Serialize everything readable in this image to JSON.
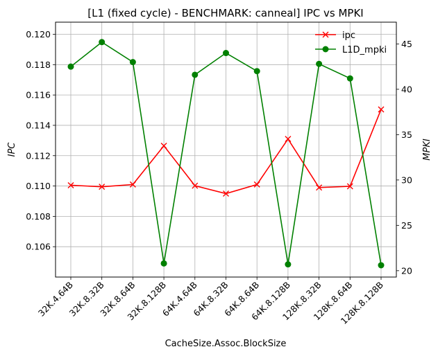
{
  "chart_data": {
    "type": "line",
    "title": "[L1 (fixed cycle) - BENCHMARK: canneal]  IPC vs MPKI",
    "xlabel": "CacheSize.Assoc.BlockSize",
    "ylabel_left": "IPC",
    "ylabel_right": "MPKI",
    "categories": [
      "32K.4.64B",
      "32K.8.32B",
      "32K.8.64B",
      "32K.8.128B",
      "64K.4.64B",
      "64K.8.32B",
      "64K.8.64B",
      "64K.8.128B",
      "128K.8.32B",
      "128K.8.64B",
      "128K.8.128B"
    ],
    "ylim_left": [
      0.104,
      0.1208
    ],
    "yticks_left": [
      "0.106",
      "0.108",
      "0.110",
      "0.112",
      "0.114",
      "0.116",
      "0.118",
      "0.120"
    ],
    "ylim_right": [
      19.3,
      47.4
    ],
    "yticks_right": [
      "20",
      "25",
      "30",
      "35",
      "40",
      "45"
    ],
    "grid": true,
    "legend_position": "top-right",
    "series": [
      {
        "name": "ipc",
        "axis": "left",
        "color": "#ff0000",
        "marker": "x",
        "values": [
          0.11005,
          0.10995,
          0.1101,
          0.11265,
          0.11002,
          0.1095,
          0.1101,
          0.1131,
          0.1099,
          0.10998,
          0.11505
        ]
      },
      {
        "name": "L1D_mpki",
        "axis": "right",
        "color": "#008000",
        "marker": "o",
        "values": [
          42.5,
          45.2,
          43.0,
          20.8,
          41.6,
          44.0,
          42.0,
          20.7,
          42.8,
          41.2,
          20.6
        ]
      }
    ]
  }
}
